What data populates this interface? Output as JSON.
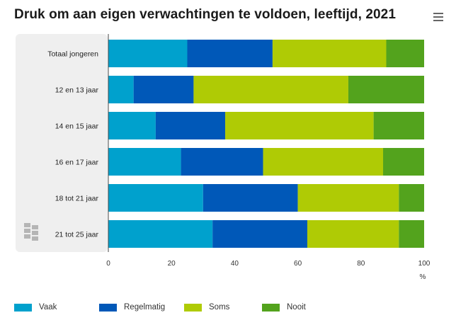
{
  "header": {
    "title": "Druk om aan eigen verwachtingen te voldoen, leeftijd, 2021",
    "menu_icon": "hamburger-icon"
  },
  "logo_icon": "cbs-logo-icon",
  "chart_data": {
    "type": "bar",
    "orientation": "horizontal",
    "stacked": true,
    "title": "Druk om aan eigen verwachtingen te voldoen, leeftijd, 2021",
    "categories": [
      "Totaal jongeren",
      "12 en 13 jaar",
      "14 en 15 jaar",
      "16 en 17 jaar",
      "18 tot 21 jaar",
      "21 tot 25 jaar"
    ],
    "series": [
      {
        "name": "Vaak",
        "color": "#00a1cd",
        "values": [
          25,
          8,
          15,
          23,
          30,
          33
        ]
      },
      {
        "name": "Regelmatig",
        "color": "#0058b8",
        "values": [
          27,
          19,
          22,
          26,
          30,
          30
        ]
      },
      {
        "name": "Soms",
        "color": "#afcb05",
        "values": [
          36,
          49,
          47,
          38,
          32,
          29
        ]
      },
      {
        "name": "Nooit",
        "color": "#53a31d",
        "values": [
          12,
          24,
          16,
          13,
          8,
          8
        ]
      }
    ],
    "xlim": [
      0,
      100
    ],
    "xticks": [
      0,
      20,
      40,
      60,
      80,
      100
    ],
    "xunit": "%",
    "grid": false,
    "legend": "bottom-left"
  }
}
